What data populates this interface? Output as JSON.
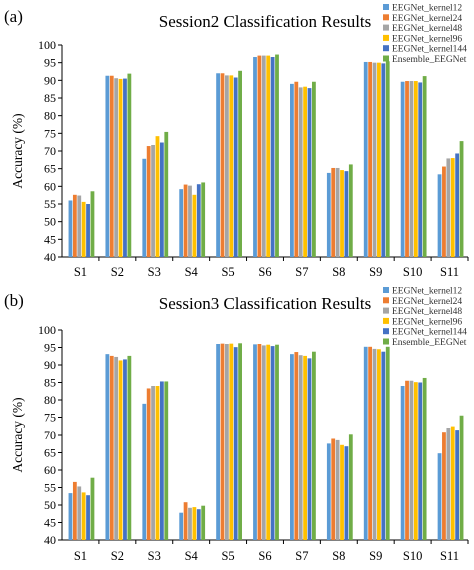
{
  "figure": {
    "colors": [
      "#5b9bd5",
      "#ed7d31",
      "#a5a5a5",
      "#ffc000",
      "#4472c4",
      "#70ad47"
    ]
  },
  "chart_data": [
    {
      "panel_label": "(a)",
      "type": "bar",
      "title": "Session2 Classification Results",
      "ylabel": "Accuracy (%)",
      "xlabel": "",
      "ylim": [
        40,
        100
      ],
      "yticks": [
        40,
        45,
        50,
        55,
        60,
        65,
        70,
        75,
        80,
        85,
        90,
        95,
        100
      ],
      "grid": false,
      "legend_position": "top-right",
      "categories": [
        "S1",
        "S2",
        "S3",
        "S4",
        "S5",
        "S6",
        "S7",
        "S8",
        "S9",
        "S10",
        "S11"
      ],
      "series": [
        {
          "name": "EEGNet_kernel12",
          "values": [
            56.0,
            91.3,
            67.8,
            59.2,
            92.0,
            96.6,
            89.0,
            63.8,
            95.2,
            89.6,
            63.4
          ]
        },
        {
          "name": "EEGNet_kernel24",
          "values": [
            57.6,
            91.3,
            71.4,
            60.5,
            92.0,
            97.0,
            89.6,
            65.2,
            95.2,
            89.8,
            65.6
          ]
        },
        {
          "name": "EEGNet_kernel48",
          "values": [
            57.4,
            90.6,
            71.7,
            60.2,
            91.4,
            97.0,
            88.0,
            65.2,
            95.0,
            89.8,
            67.9
          ]
        },
        {
          "name": "EEGNet_kernel96",
          "values": [
            55.6,
            90.4,
            74.2,
            57.6,
            91.4,
            97.0,
            88.2,
            64.6,
            95.0,
            89.8,
            68.0
          ]
        },
        {
          "name": "EEGNet_kernel144",
          "values": [
            55.0,
            90.5,
            72.4,
            60.6,
            90.8,
            96.6,
            87.8,
            64.3,
            94.8,
            89.4,
            69.3
          ]
        },
        {
          "name": "Ensemble_EEGNet",
          "values": [
            58.6,
            91.9,
            75.4,
            61.1,
            92.7,
            97.3,
            89.6,
            66.2,
            95.4,
            91.2,
            72.8
          ]
        }
      ]
    },
    {
      "panel_label": "(b)",
      "type": "bar",
      "title": "Session3 Classification Results",
      "ylabel": "Accuracy (%)",
      "xlabel": "",
      "ylim": [
        40,
        100
      ],
      "yticks": [
        40,
        45,
        50,
        55,
        60,
        65,
        70,
        75,
        80,
        85,
        90,
        95,
        100
      ],
      "grid": false,
      "legend_position": "top-right",
      "categories": [
        "S1",
        "S2",
        "S3",
        "S4",
        "S5",
        "S6",
        "S7",
        "S8",
        "S9",
        "S10",
        "S11"
      ],
      "series": [
        {
          "name": "EEGNet_kernel12",
          "values": [
            53.4,
            93.1,
            78.9,
            47.8,
            96.0,
            95.9,
            93.1,
            67.6,
            95.2,
            84.0,
            64.8
          ]
        },
        {
          "name": "EEGNet_kernel24",
          "values": [
            56.6,
            92.6,
            83.3,
            50.8,
            96.1,
            96.0,
            93.7,
            69.0,
            95.2,
            85.5,
            70.8
          ]
        },
        {
          "name": "EEGNet_kernel48",
          "values": [
            55.3,
            92.3,
            84.0,
            49.2,
            96.0,
            95.6,
            92.8,
            68.6,
            94.6,
            85.5,
            72.0
          ]
        },
        {
          "name": "EEGNet_kernel96",
          "values": [
            53.6,
            91.3,
            84.0,
            49.4,
            96.1,
            95.8,
            92.6,
            67.2,
            94.5,
            85.1,
            72.4
          ]
        },
        {
          "name": "EEGNet_kernel144",
          "values": [
            52.8,
            91.6,
            85.3,
            48.8,
            95.1,
            95.4,
            91.9,
            66.8,
            93.8,
            85.0,
            71.4
          ]
        },
        {
          "name": "Ensemble_EEGNet",
          "values": [
            57.8,
            92.6,
            85.3,
            49.8,
            96.2,
            95.8,
            93.8,
            70.2,
            95.2,
            86.3,
            75.5
          ]
        }
      ]
    }
  ]
}
